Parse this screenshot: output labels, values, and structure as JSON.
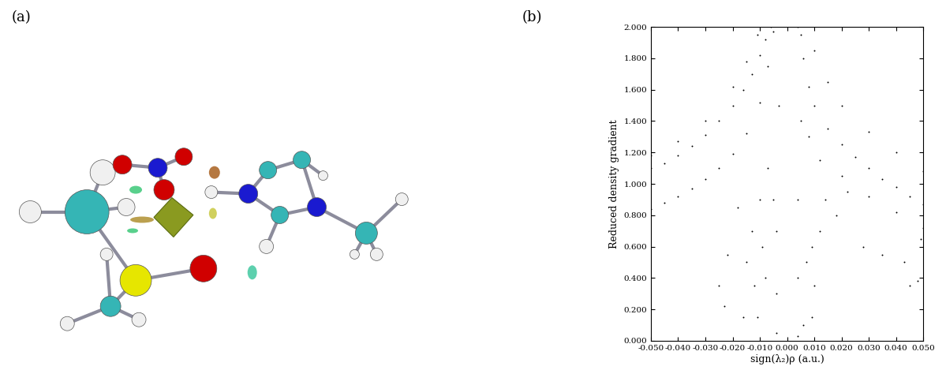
{
  "panel_labels": [
    "(a)",
    "(b)"
  ],
  "chart_data": {
    "type": "scatter",
    "x_label": "sign(λ₂)ρ (a.u.)",
    "y_label": "Reduced density gradient",
    "color": "#000000",
    "marker": "o",
    "grid": false,
    "xlim": [
      -0.05,
      0.05
    ],
    "ylim": [
      0.0,
      2.0
    ],
    "xticks": [
      {
        "value": -0.05,
        "label": "-0.050"
      },
      {
        "value": -0.04,
        "label": "-0.040"
      },
      {
        "value": -0.03,
        "label": "-0.030"
      },
      {
        "value": -0.02,
        "label": "-0.020"
      },
      {
        "value": -0.01,
        "label": "-0.010"
      },
      {
        "value": 0.0,
        "label": "0.000"
      },
      {
        "value": 0.01,
        "label": "0.010"
      },
      {
        "value": 0.02,
        "label": "0.020"
      },
      {
        "value": 0.03,
        "label": "0.030"
      },
      {
        "value": 0.04,
        "label": "0.040"
      },
      {
        "value": 0.05,
        "label": "0.050"
      }
    ],
    "yticks": [
      {
        "value": 0.0,
        "label": "0.000"
      },
      {
        "value": 0.2,
        "label": "0.200"
      },
      {
        "value": 0.4,
        "label": "0.400"
      },
      {
        "value": 0.6,
        "label": "0.600"
      },
      {
        "value": 0.8,
        "label": "0.800"
      },
      {
        "value": 1.0,
        "label": "1.000"
      },
      {
        "value": 1.2,
        "label": "1.200"
      },
      {
        "value": 1.4,
        "label": "1.400"
      },
      {
        "value": 1.6,
        "label": "1.600"
      },
      {
        "value": 1.8,
        "label": "1.800"
      },
      {
        "value": 2.0,
        "label": "2.000"
      }
    ],
    "x": [
      -0.05,
      -0.045,
      -0.04,
      -0.035,
      -0.03,
      -0.025,
      -0.02,
      -0.016,
      -0.013,
      -0.01,
      -0.008,
      -0.006,
      -0.05,
      -0.04,
      -0.03,
      -0.02,
      -0.015,
      -0.011,
      -0.05,
      -0.045,
      -0.04,
      -0.035,
      -0.03,
      -0.025,
      -0.02,
      -0.015,
      -0.01,
      -0.007,
      -0.005,
      -0.025,
      -0.023,
      -0.022,
      -0.018,
      -0.016,
      -0.015,
      -0.013,
      -0.012,
      -0.011,
      -0.01,
      -0.009,
      -0.008,
      -0.007,
      -0.005,
      -0.004,
      -0.004,
      -0.004,
      -0.003,
      0.004,
      0.006,
      0.008,
      0.01,
      0.015,
      0.02,
      0.025,
      0.03,
      0.035,
      0.04,
      0.045,
      0.05,
      0.01,
      0.015,
      0.02,
      0.03,
      0.04,
      0.05,
      0.005,
      0.008,
      0.012,
      0.02,
      0.03,
      0.04,
      0.05,
      0.004,
      0.004,
      0.004,
      0.005,
      0.006,
      0.007,
      0.009,
      0.009,
      0.01,
      0.012,
      0.014,
      0.018,
      0.022,
      0.028,
      0.035,
      0.043,
      0.045,
      0.048,
      0.049
    ],
    "values": [
      1.1,
      1.13,
      1.18,
      1.24,
      1.31,
      1.4,
      1.5,
      1.6,
      1.7,
      1.82,
      1.92,
      2.0,
      1.18,
      1.27,
      1.4,
      1.62,
      1.78,
      1.95,
      0.84,
      0.88,
      0.92,
      0.97,
      1.03,
      1.1,
      1.19,
      1.32,
      1.52,
      1.75,
      1.97,
      0.35,
      0.22,
      0.55,
      0.85,
      0.15,
      0.5,
      0.7,
      0.35,
      0.15,
      0.9,
      0.6,
      0.4,
      1.1,
      0.9,
      0.05,
      0.3,
      0.7,
      1.5,
      2.0,
      1.8,
      1.62,
      1.5,
      1.35,
      1.25,
      1.17,
      1.1,
      1.03,
      0.98,
      0.92,
      0.87,
      1.85,
      1.65,
      1.5,
      1.33,
      1.2,
      1.08,
      1.95,
      1.3,
      1.15,
      1.05,
      0.92,
      0.82,
      0.72,
      0.03,
      0.4,
      0.9,
      1.4,
      0.1,
      0.5,
      0.15,
      0.6,
      0.35,
      0.7,
      0.9,
      0.8,
      0.95,
      0.6,
      0.55,
      0.5,
      0.35,
      0.38,
      0.65
    ]
  }
}
